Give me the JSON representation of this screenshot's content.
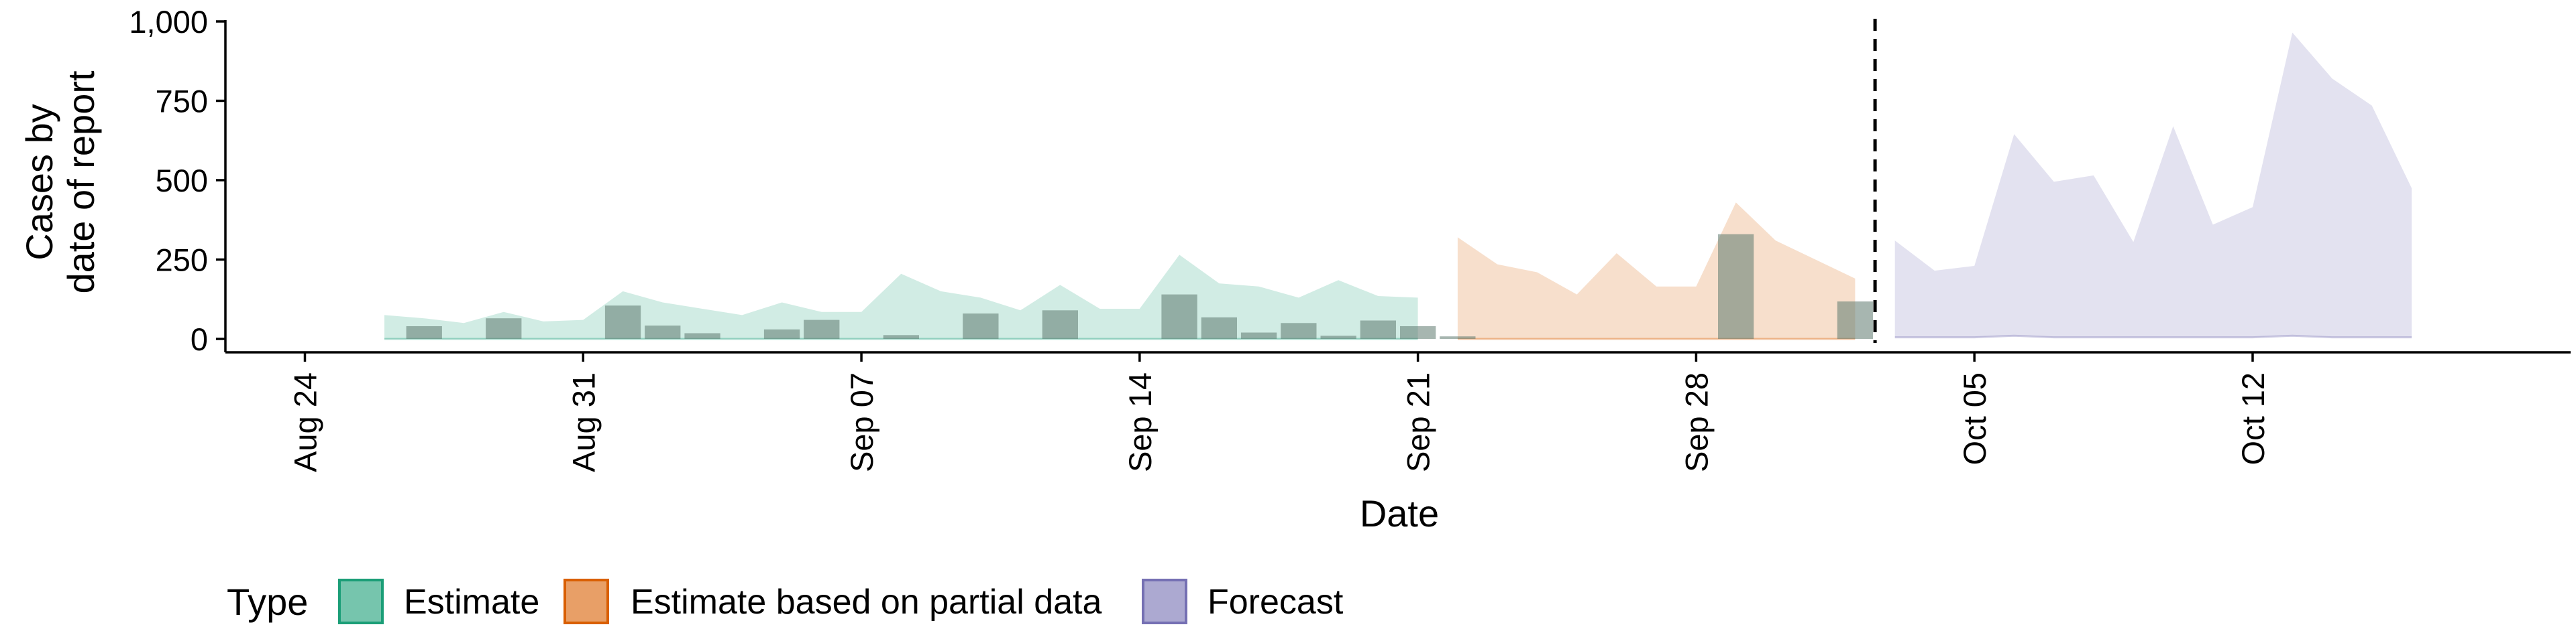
{
  "chart_data": {
    "type": "area",
    "xlabel": "Date",
    "ylabel_lines": [
      "Cases by",
      "date of report"
    ],
    "ylim": [
      0,
      1000
    ],
    "y_ticks": [
      0,
      250,
      500,
      750,
      1000
    ],
    "y_tick_labels": [
      "0",
      "250",
      "500",
      "750",
      "1,000"
    ],
    "xlim": [
      "2020-08-22",
      "2020-10-20"
    ],
    "x_ticks": [
      "2020-08-24",
      "2020-08-31",
      "2020-09-07",
      "2020-09-14",
      "2020-09-21",
      "2020-09-28",
      "2020-10-05",
      "2020-10-12"
    ],
    "x_tick_labels": [
      "Aug 24",
      "Aug 31",
      "Sep 07",
      "Sep 14",
      "Sep 21",
      "Sep 28",
      "Oct 05",
      "Oct 12"
    ],
    "forecast_date": "2020-10-02",
    "legend": {
      "title": "Type",
      "position": "bottom",
      "entries": [
        "Estimate",
        "Estimate based on partial data",
        "Forecast"
      ]
    },
    "colors": {
      "Estimate": "#1B9E77",
      "Estimate based on partial data": "#D95F02",
      "Forecast": "#7570B3",
      "reported": "#5f7a70",
      "forecast_line": "#000000"
    },
    "reported_cases": {
      "dates": [
        "2020-08-27",
        "2020-08-29",
        "2020-09-01",
        "2020-09-02",
        "2020-09-03",
        "2020-09-05",
        "2020-09-06",
        "2020-09-08",
        "2020-09-10",
        "2020-09-12",
        "2020-09-15",
        "2020-09-16",
        "2020-09-17",
        "2020-09-18",
        "2020-09-19",
        "2020-09-20",
        "2020-09-21",
        "2020-09-22",
        "2020-09-29",
        "2020-10-02"
      ],
      "values": [
        40,
        65,
        105,
        42,
        18,
        30,
        60,
        12,
        80,
        90,
        140,
        68,
        20,
        50,
        10,
        58,
        40,
        8,
        330,
        118
      ]
    },
    "series": [
      {
        "name": "Estimate",
        "dates": [
          "2020-08-26",
          "2020-08-27",
          "2020-08-28",
          "2020-08-29",
          "2020-08-30",
          "2020-08-31",
          "2020-09-01",
          "2020-09-02",
          "2020-09-03",
          "2020-09-04",
          "2020-09-05",
          "2020-09-06",
          "2020-09-07",
          "2020-09-08",
          "2020-09-09",
          "2020-09-10",
          "2020-09-11",
          "2020-09-12",
          "2020-09-13",
          "2020-09-14",
          "2020-09-15",
          "2020-09-16",
          "2020-09-17",
          "2020-09-18",
          "2020-09-19",
          "2020-09-20",
          "2020-09-21"
        ],
        "upper": [
          75,
          65,
          50,
          85,
          55,
          60,
          150,
          115,
          95,
          75,
          115,
          85,
          85,
          205,
          150,
          130,
          90,
          170,
          95,
          95,
          265,
          175,
          165,
          130,
          185,
          135,
          130
        ],
        "lower": [
          0,
          0,
          0,
          0,
          0,
          0,
          0,
          0,
          0,
          0,
          0,
          0,
          0,
          0,
          0,
          0,
          0,
          0,
          0,
          0,
          0,
          0,
          0,
          0,
          0,
          0,
          0
        ]
      },
      {
        "name": "Estimate based on partial data",
        "dates": [
          "2020-09-22",
          "2020-09-23",
          "2020-09-24",
          "2020-09-25",
          "2020-09-26",
          "2020-09-27",
          "2020-09-28",
          "2020-09-29",
          "2020-09-30",
          "2020-10-01",
          "2020-10-02"
        ],
        "upper": [
          320,
          235,
          210,
          140,
          270,
          165,
          165,
          430,
          310,
          250,
          190
        ],
        "lower": [
          0,
          0,
          0,
          0,
          0,
          0,
          0,
          0,
          0,
          0,
          0
        ]
      },
      {
        "name": "Forecast",
        "dates": [
          "2020-10-03",
          "2020-10-04",
          "2020-10-05",
          "2020-10-06",
          "2020-10-07",
          "2020-10-08",
          "2020-10-09",
          "2020-10-10",
          "2020-10-11",
          "2020-10-12",
          "2020-10-13",
          "2020-10-14",
          "2020-10-15",
          "2020-10-16"
        ],
        "upper": [
          310,
          215,
          230,
          645,
          495,
          515,
          305,
          670,
          360,
          415,
          965,
          820,
          735,
          475
        ],
        "lower": [
          5,
          5,
          5,
          10,
          5,
          5,
          5,
          5,
          5,
          5,
          10,
          5,
          5,
          5
        ]
      }
    ]
  }
}
